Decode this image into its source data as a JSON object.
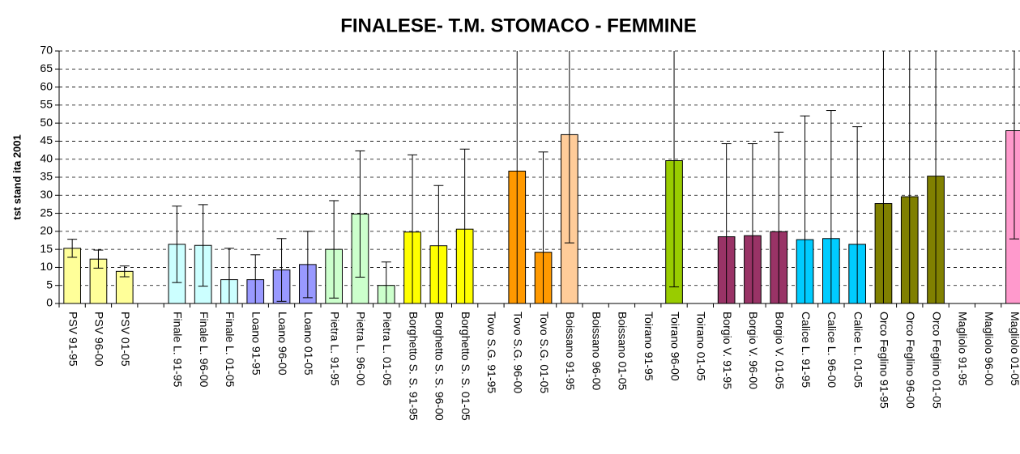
{
  "chart_data": {
    "type": "bar",
    "title": "FINALESE- T.M. STOMACO - FEMMINE",
    "y_label": "tst stand ita 2001",
    "categories": [
      "PSV 91-95",
      "PSV 96-00",
      "PSV 01-05",
      null,
      "Finale L. 91-95",
      "Finale L. 96-00",
      "Finale L. 01-05",
      "Loano 91-95",
      "Loano 96-00",
      "Loano 01-05",
      "Pietra L. 91-95",
      "Pietra L. 96-00",
      "Pietra L. 01-05",
      "Borghetto S. S. 91-95",
      "Borghetto S. S. 96-00",
      "Borghetto S. S. 01-05",
      "Tovo S.G. 91-95",
      "Tovo S.G. 96-00",
      "Tovo S.G. 01-05",
      "Boissano 91-95",
      "Boissano 96-00",
      "Boissano 01-05",
      "Toirano 91-95",
      "Toirano 96-00",
      "Toirano 01-05",
      "Borgio V. 91-95",
      "Borgio V. 96-00",
      "Borgio V. 01-05",
      "Calice L. 91-95",
      "Calice L. 96-00",
      "Calice L. 01-05",
      "Orco Feglino 91-95",
      "Orco Feglino 96-00",
      "Orco Feglino 01-05",
      "Magliolo 91-95",
      "Magliolo 96-00",
      "Magliolo 01-05"
    ],
    "values": [
      15.3,
      12.3,
      8.9,
      null,
      16.4,
      16.1,
      6.6,
      6.6,
      9.3,
      10.8,
      15,
      24.8,
      5,
      19.8,
      16,
      20.6,
      0,
      36.7,
      14.2,
      46.8,
      0,
      0,
      0,
      39.6,
      0,
      18.5,
      18.8,
      19.9,
      17.7,
      18,
      16.4,
      27.7,
      29.6,
      35.3,
      0,
      0,
      47.9
    ],
    "errors": [
      2.5,
      2.5,
      1.5,
      null,
      10.6,
      11.3,
      8.7,
      6.9,
      8.7,
      9.2,
      13.5,
      17.5,
      6.5,
      21.4,
      16.7,
      22.2,
      0,
      40,
      27.8,
      30,
      0,
      0,
      0,
      35,
      0,
      25.8,
      25.5,
      27.6,
      34.3,
      35.5,
      32.6,
      45,
      45,
      40,
      0,
      0,
      30
    ],
    "colors": [
      "#ffff99",
      "#ffff99",
      "#ffff99",
      null,
      "#ccffff",
      "#ccffff",
      "#ccffff",
      "#9999ff",
      "#9999ff",
      "#9999ff",
      "#ccffcc",
      "#ccffcc",
      "#ccffcc",
      "#ffff00",
      "#ffff00",
      "#ffff00",
      "#ff9900",
      "#ff9900",
      "#ff9900",
      "#ffcc99",
      "#ffcc99",
      "#ffcc99",
      "#99cc00",
      "#99cc00",
      "#99cc00",
      "#993366",
      "#993366",
      "#993366",
      "#00ccff",
      "#00ccff",
      "#00ccff",
      "#808000",
      "#808000",
      "#808000",
      "#ff99cc",
      "#ff99cc",
      "#ff99cc"
    ],
    "ylim": [
      0,
      70
    ],
    "yticks": [
      0,
      5,
      10,
      15,
      20,
      25,
      30,
      35,
      40,
      45,
      50,
      55,
      60,
      65,
      70
    ],
    "grid": true
  }
}
